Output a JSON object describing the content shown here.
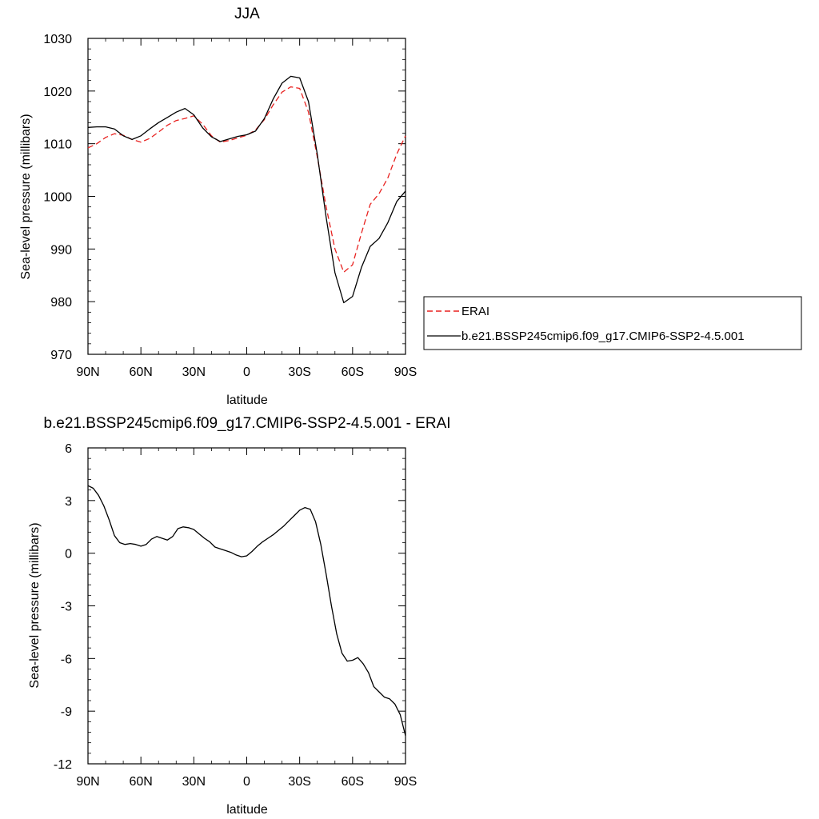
{
  "chart_data": [
    {
      "type": "line",
      "title": "JJA",
      "xlabel": "latitude",
      "ylabel": "Sea-level pressure (millibars)",
      "xlim": [
        -90,
        90
      ],
      "ylim": [
        970,
        1030
      ],
      "xticks": [
        -90,
        -60,
        -30,
        0,
        30,
        60,
        90
      ],
      "xtick_labels": [
        "90N",
        "60N",
        "30N",
        "0",
        "30S",
        "60S",
        "90S"
      ],
      "yticks": [
        970,
        980,
        990,
        1000,
        1010,
        1020,
        1030
      ],
      "ytick_labels": [
        "970",
        "980",
        "990",
        "1000",
        "1010",
        "1020",
        "1030"
      ],
      "legend_position": "right",
      "series": [
        {
          "name": "ERAI",
          "color": "#e8211f",
          "dash": "dashed",
          "x": [
            -90,
            -85,
            -80,
            -75,
            -70,
            -65,
            -60,
            -55,
            -50,
            -45,
            -40,
            -35,
            -30,
            -25,
            -20,
            -15,
            -10,
            -5,
            0,
            5,
            10,
            15,
            20,
            25,
            30,
            35,
            40,
            45,
            50,
            55,
            60,
            65,
            70,
            75,
            80,
            85,
            90
          ],
          "y": [
            1009.2,
            1010.0,
            1011.2,
            1011.9,
            1011.6,
            1010.8,
            1010.3,
            1011.0,
            1012.2,
            1013.5,
            1014.4,
            1014.8,
            1015.3,
            1013.7,
            1011.5,
            1010.3,
            1010.6,
            1011.1,
            1011.6,
            1012.6,
            1014.6,
            1017.4,
            1019.8,
            1020.8,
            1020.5,
            1016.0,
            1007.5,
            998.0,
            990.0,
            985.6,
            987.0,
            993.0,
            998.5,
            1000.5,
            1003.5,
            1008.0,
            1011.5
          ]
        },
        {
          "name": "b.e21.BSSP245cmip6.f09_g17.CMIP6-SSP2-4.5.001",
          "color": "#000000",
          "dash": "solid",
          "x": [
            -90,
            -85,
            -80,
            -75,
            -70,
            -65,
            -60,
            -55,
            -50,
            -45,
            -40,
            -35,
            -30,
            -25,
            -20,
            -15,
            -10,
            -5,
            0,
            5,
            10,
            15,
            20,
            25,
            30,
            35,
            40,
            45,
            50,
            55,
            60,
            65,
            70,
            75,
            80,
            85,
            90
          ],
          "y": [
            1013.1,
            1013.2,
            1013.2,
            1012.8,
            1011.5,
            1010.8,
            1011.5,
            1012.8,
            1014.0,
            1015.0,
            1016.0,
            1016.7,
            1015.5,
            1013.0,
            1011.3,
            1010.4,
            1010.9,
            1011.4,
            1011.7,
            1012.4,
            1014.8,
            1018.5,
            1021.5,
            1022.8,
            1022.5,
            1018.0,
            1008.0,
            996.0,
            985.5,
            979.8,
            981.0,
            986.5,
            990.5,
            992.0,
            995.0,
            999.0,
            1001.0
          ]
        }
      ]
    },
    {
      "type": "line",
      "title": "b.e21.BSSP245cmip6.f09_g17.CMIP6-SSP2-4.5.001 - ERAI",
      "xlabel": "latitude",
      "ylabel": "Sea-level pressure (millibars)",
      "xlim": [
        -90,
        90
      ],
      "ylim": [
        -12,
        6
      ],
      "xticks": [
        -90,
        -60,
        -30,
        0,
        30,
        60,
        90
      ],
      "xtick_labels": [
        "90N",
        "60N",
        "30N",
        "0",
        "30S",
        "60S",
        "90S"
      ],
      "yticks": [
        -12,
        -9,
        -6,
        -3,
        0,
        3,
        6
      ],
      "ytick_labels": [
        "-12",
        "-9",
        "-6",
        "-3",
        "0",
        "3",
        "6"
      ],
      "series": [
        {
          "name": "",
          "color": "#000000",
          "dash": "solid",
          "x": [
            -90,
            -87,
            -84,
            -81,
            -78,
            -75,
            -72,
            -69,
            -66,
            -63,
            -60,
            -57,
            -54,
            -51,
            -48,
            -45,
            -42,
            -39,
            -36,
            -33,
            -30,
            -27,
            -24,
            -21,
            -18,
            -15,
            -12,
            -9,
            -6,
            -3,
            0,
            3,
            6,
            9,
            12,
            15,
            18,
            21,
            24,
            27,
            30,
            33,
            36,
            39,
            42,
            45,
            48,
            51,
            54,
            57,
            60,
            63,
            66,
            69,
            72,
            75,
            78,
            81,
            84,
            87,
            90
          ],
          "y": [
            3.85,
            3.7,
            3.3,
            2.7,
            1.9,
            1.0,
            0.6,
            0.5,
            0.55,
            0.5,
            0.4,
            0.5,
            0.8,
            0.95,
            0.85,
            0.75,
            0.95,
            1.4,
            1.5,
            1.45,
            1.35,
            1.1,
            0.85,
            0.65,
            0.35,
            0.25,
            0.15,
            0.05,
            -0.1,
            -0.2,
            -0.15,
            0.1,
            0.4,
            0.65,
            0.85,
            1.05,
            1.3,
            1.55,
            1.85,
            2.15,
            2.45,
            2.6,
            2.5,
            1.8,
            0.5,
            -1.2,
            -3.0,
            -4.6,
            -5.7,
            -6.15,
            -6.1,
            -5.95,
            -6.3,
            -6.8,
            -7.6,
            -7.9,
            -8.2,
            -8.3,
            -8.6,
            -9.2,
            -10.4
          ]
        }
      ]
    }
  ],
  "legend": {
    "items": [
      {
        "label": "ERAI",
        "color": "#e8211f",
        "dash": "dashed"
      },
      {
        "label": "b.e21.BSSP245cmip6.f09_g17.CMIP6-SSP2-4.5.001",
        "color": "#000000",
        "dash": "solid"
      }
    ]
  }
}
